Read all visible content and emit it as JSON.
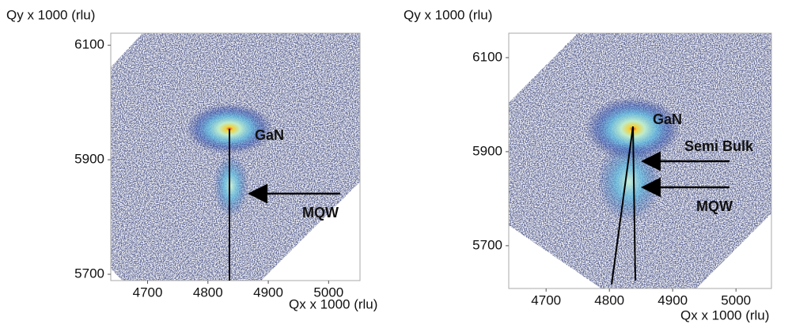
{
  "chart_data": [
    {
      "type": "heatmap",
      "ylabel": "Qy x 1000 (rlu)",
      "xlabel": "Qx x 1000 (rlu)",
      "xlim": [
        4639,
        5052
      ],
      "ylim": [
        5689,
        6121
      ],
      "xticks": [
        4700,
        4800,
        4900,
        5000
      ],
      "yticks": [
        5700,
        5900,
        6100
      ],
      "annotations": [
        "GaN",
        "MQW"
      ]
    },
    {
      "type": "heatmap",
      "ylabel": "Qy x 1000 (rlu)",
      "xlabel": "Qx x 1000 (rlu)",
      "xlim": [
        4641,
        5056
      ],
      "ylim": [
        5609,
        6152
      ],
      "xticks": [
        4700,
        4800,
        4900,
        5000
      ],
      "yticks": [
        5700,
        5900,
        6100
      ],
      "annotations": [
        "GaN",
        "Semi Bulk",
        "MQW"
      ]
    }
  ]
}
